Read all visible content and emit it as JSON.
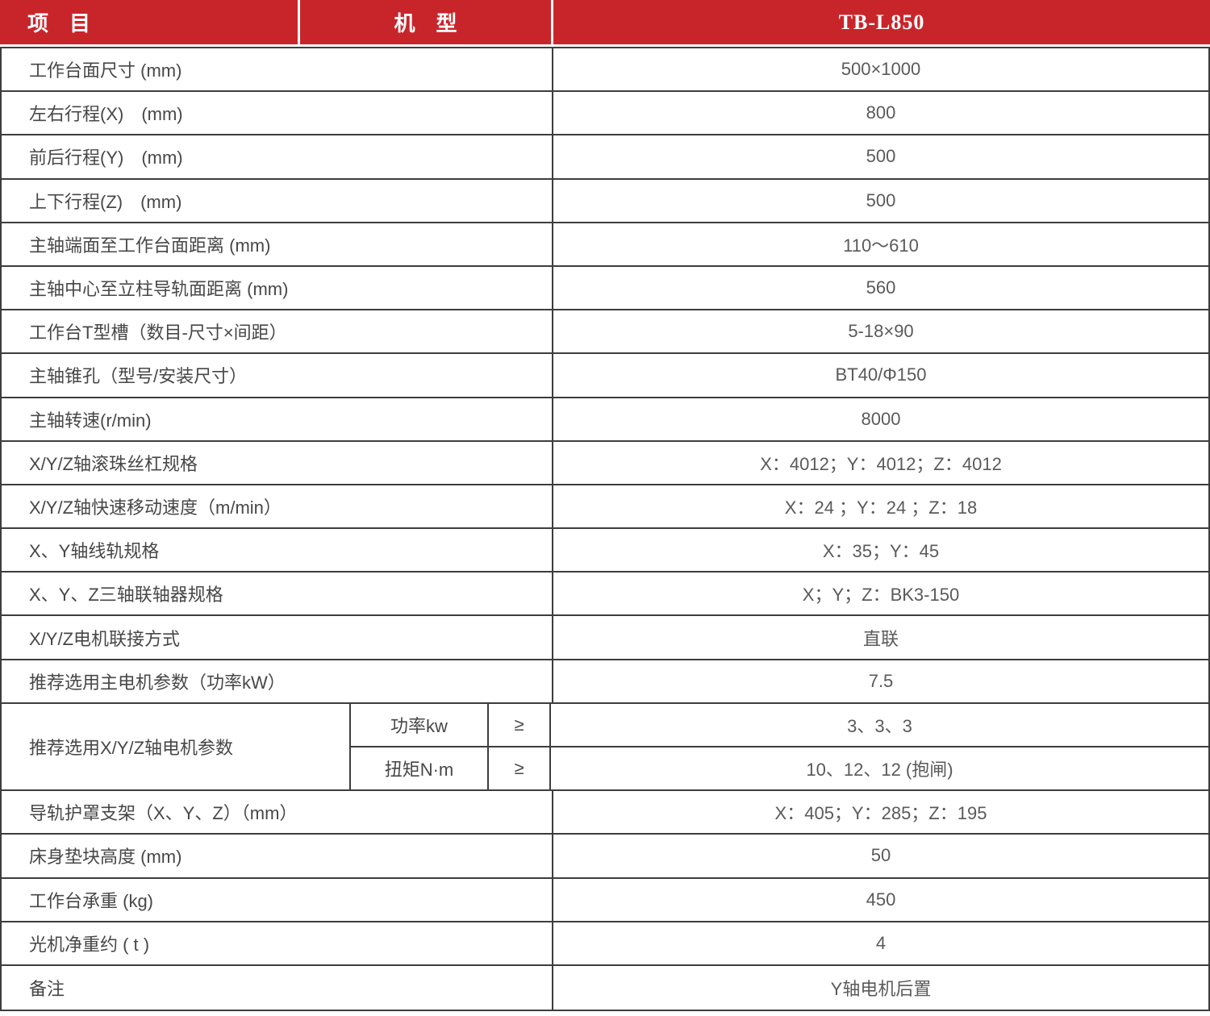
{
  "colors": {
    "accent_red": "#C8252B",
    "border": "#3D3D3D",
    "label_text": "#474747",
    "value_text": "#5A5A5A"
  },
  "header": {
    "item_label": "项　目",
    "model_label": "机　型",
    "model_value": "TB-L850"
  },
  "rows": [
    {
      "label": "工作台面尺寸 (mm)",
      "value": "500×1000"
    },
    {
      "label": "左右行程(X)　(mm)",
      "value": "800"
    },
    {
      "label": "前后行程(Y)　(mm)",
      "value": "500"
    },
    {
      "label": "上下行程(Z)　(mm)",
      "value": "500"
    },
    {
      "label": "主轴端面至工作台面距离 (mm)",
      "value": "110～610"
    },
    {
      "label": "主轴中心至立柱导轨面距离 (mm)",
      "value": "560"
    },
    {
      "label": "工作台T型槽（数目-尺寸×间距）",
      "value": "5-18×90"
    },
    {
      "label": "主轴锥孔（型号/安装尺寸）",
      "value": "BT40/Φ150"
    },
    {
      "label": "主轴转速(r/min)",
      "value": "8000"
    },
    {
      "label": "X/Y/Z轴滚珠丝杠规格",
      "value": "X：4012；Y：4012；Z：4012"
    },
    {
      "label": "X/Y/Z轴快速移动速度（m/min）",
      "value": "X：24 ；Y：24 ；Z：18"
    },
    {
      "label": "X、Y轴线轨规格",
      "value": "X：35；Y：45"
    },
    {
      "label": "X、Y、Z三轴联轴器规格",
      "value": "X；Y；Z：BK3-150"
    },
    {
      "label": "X/Y/Z电机联接方式",
      "value": "直联"
    },
    {
      "label": "推荐选用主电机参数（功率kW）",
      "value": "7.5"
    }
  ],
  "motor_row": {
    "label": "推荐选用X/Y/Z轴电机参数",
    "sub_rows": [
      {
        "param": "功率kw",
        "op": "≥",
        "value": "3、3、3"
      },
      {
        "param": "扭矩N·m",
        "op": "≥",
        "value": "10、12、12 (抱闸)"
      }
    ]
  },
  "rows_bottom": [
    {
      "label": "导轨护罩支架（X、Y、Z）（mm）",
      "value": "X：405；Y：285；Z：195"
    },
    {
      "label": "床身垫块高度 (mm)",
      "value": "50"
    },
    {
      "label": "工作台承重 (kg)",
      "value": "450"
    },
    {
      "label": "光机净重约 ( t )",
      "value": "4"
    },
    {
      "label": "备注",
      "value": "Y轴电机后置"
    }
  ]
}
